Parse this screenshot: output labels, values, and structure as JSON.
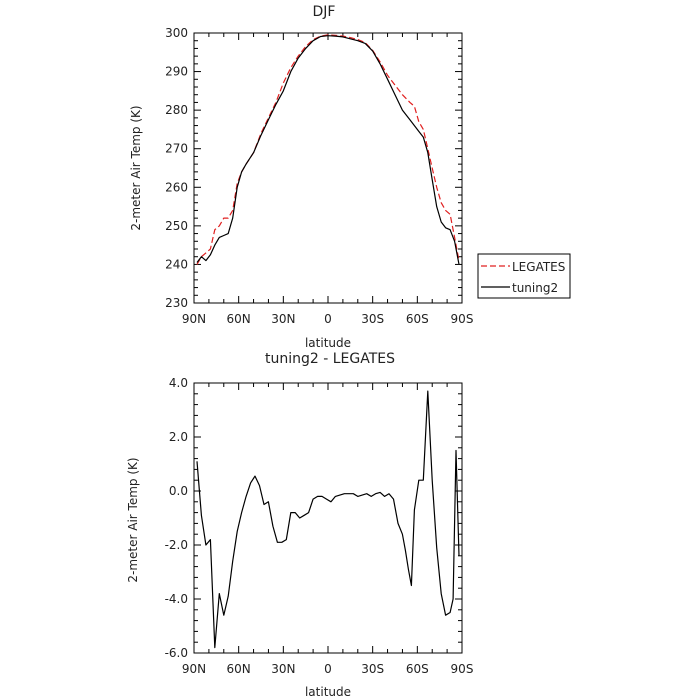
{
  "chart_data": [
    {
      "type": "line",
      "title": "DJF",
      "xlabel": "latitude",
      "ylabel": "2-meter Air Temp (K)",
      "xlim": [
        90,
        -90
      ],
      "ylim": [
        230,
        300
      ],
      "xticks": [
        {
          "value": 90,
          "label": "90N"
        },
        {
          "value": 60,
          "label": "60N"
        },
        {
          "value": 30,
          "label": "30N"
        },
        {
          "value": 0,
          "label": "0"
        },
        {
          "value": -30,
          "label": "30S"
        },
        {
          "value": -60,
          "label": "60S"
        },
        {
          "value": -90,
          "label": "90S"
        }
      ],
      "yticks": [
        {
          "value": 230,
          "label": "230"
        },
        {
          "value": 240,
          "label": "240"
        },
        {
          "value": 250,
          "label": "250"
        },
        {
          "value": 260,
          "label": "260"
        },
        {
          "value": 270,
          "label": "270"
        },
        {
          "value": 280,
          "label": "280"
        },
        {
          "value": 290,
          "label": "290"
        },
        {
          "value": 300,
          "label": "300"
        }
      ],
      "legend_position": "right",
      "series": [
        {
          "name": "LEGATES",
          "color": "#e02020",
          "dash": "dashed",
          "points": [
            [
              88,
              240
            ],
            [
              85,
              242
            ],
            [
              82,
              243
            ],
            [
              79,
              244
            ],
            [
              76,
              249
            ],
            [
              73,
              250
            ],
            [
              70,
              252
            ],
            [
              67,
              252
            ],
            [
              64,
              254
            ],
            [
              61,
              261
            ],
            [
              58,
              264
            ],
            [
              55,
              266
            ],
            [
              50,
              269
            ],
            [
              45,
              274
            ],
            [
              40,
              278
            ],
            [
              35,
              282
            ],
            [
              30,
              287
            ],
            [
              25,
              291
            ],
            [
              20,
              294
            ],
            [
              15,
              296.5
            ],
            [
              10,
              298.3
            ],
            [
              5,
              299.2
            ],
            [
              0,
              299.5
            ],
            [
              -5,
              299.4
            ],
            [
              -10,
              299.2
            ],
            [
              -15,
              298.8
            ],
            [
              -20,
              298.3
            ],
            [
              -25,
              297.5
            ],
            [
              -30,
              295.5
            ],
            [
              -35,
              292.5
            ],
            [
              -40,
              289
            ],
            [
              -45,
              286.5
            ],
            [
              -50,
              284
            ],
            [
              -55,
              282
            ],
            [
              -58,
              281
            ],
            [
              -61,
              277
            ],
            [
              -64,
              275
            ],
            [
              -67,
              270
            ],
            [
              -70,
              265
            ],
            [
              -73,
              260
            ],
            [
              -76,
              256
            ],
            [
              -79,
              254
            ],
            [
              -82,
              253
            ],
            [
              -85,
              247
            ],
            [
              -88,
              241
            ]
          ]
        },
        {
          "name": "tuning2",
          "color": "#000000",
          "dash": "solid",
          "points": [
            [
              88,
              240.5
            ],
            [
              85,
              242
            ],
            [
              82,
              241
            ],
            [
              79,
              242.5
            ],
            [
              76,
              245
            ],
            [
              73,
              247
            ],
            [
              70,
              247.5
            ],
            [
              67,
              248
            ],
            [
              64,
              252
            ],
            [
              61,
              260
            ],
            [
              58,
              264
            ],
            [
              55,
              266
            ],
            [
              50,
              269
            ],
            [
              45,
              273.5
            ],
            [
              40,
              277.5
            ],
            [
              35,
              281.5
            ],
            [
              30,
              285
            ],
            [
              25,
              290
            ],
            [
              20,
              293.5
            ],
            [
              15,
              296
            ],
            [
              10,
              298
            ],
            [
              5,
              299.1
            ],
            [
              0,
              299.3
            ],
            [
              -5,
              299.2
            ],
            [
              -10,
              299
            ],
            [
              -15,
              298.5
            ],
            [
              -20,
              298
            ],
            [
              -25,
              297.3
            ],
            [
              -30,
              295.3
            ],
            [
              -35,
              292
            ],
            [
              -40,
              288
            ],
            [
              -45,
              284
            ],
            [
              -50,
              280
            ],
            [
              -55,
              277.5
            ],
            [
              -58,
              276
            ],
            [
              -61,
              274.5
            ],
            [
              -64,
              273
            ],
            [
              -67,
              269
            ],
            [
              -70,
              262
            ],
            [
              -73,
              255
            ],
            [
              -76,
              251
            ],
            [
              -79,
              249.5
            ],
            [
              -82,
              249
            ],
            [
              -85,
              246
            ],
            [
              -88,
              240
            ]
          ]
        }
      ]
    },
    {
      "type": "line",
      "title": "tuning2 - LEGATES",
      "xlabel": "latitude",
      "ylabel": "2-meter Air Temp (K)",
      "xlim": [
        90,
        -90
      ],
      "ylim": [
        -6,
        4
      ],
      "xticks": [
        {
          "value": 90,
          "label": "90N"
        },
        {
          "value": 60,
          "label": "60N"
        },
        {
          "value": 30,
          "label": "30N"
        },
        {
          "value": 0,
          "label": "0"
        },
        {
          "value": -30,
          "label": "30S"
        },
        {
          "value": -60,
          "label": "60S"
        },
        {
          "value": -90,
          "label": "90S"
        }
      ],
      "yticks": [
        {
          "value": 4,
          "label": "4.0"
        },
        {
          "value": 2,
          "label": "2.0"
        },
        {
          "value": 0,
          "label": "0.0"
        },
        {
          "value": -2,
          "label": "-2.0"
        },
        {
          "value": -4,
          "label": "-4.0"
        },
        {
          "value": -6,
          "label": "-6.0"
        }
      ],
      "series": [
        {
          "color": "#000000",
          "dash": "solid",
          "points": [
            [
              88,
              1.1
            ],
            [
              85,
              -0.9
            ],
            [
              82,
              -2.0
            ],
            [
              79,
              -1.8
            ],
            [
              76,
              -5.8
            ],
            [
              73,
              -3.8
            ],
            [
              70,
              -4.6
            ],
            [
              67,
              -3.9
            ],
            [
              64,
              -2.6
            ],
            [
              61,
              -1.5
            ],
            [
              58,
              -0.8
            ],
            [
              55,
              -0.2
            ],
            [
              52,
              0.3
            ],
            [
              49,
              0.55
            ],
            [
              46,
              0.2
            ],
            [
              43,
              -0.5
            ],
            [
              40,
              -0.4
            ],
            [
              37,
              -1.3
            ],
            [
              34,
              -1.9
            ],
            [
              31,
              -1.9
            ],
            [
              28,
              -1.8
            ],
            [
              25,
              -0.8
            ],
            [
              22,
              -0.8
            ],
            [
              19,
              -1.0
            ],
            [
              16,
              -0.9
            ],
            [
              13,
              -0.8
            ],
            [
              10,
              -0.3
            ],
            [
              7,
              -0.2
            ],
            [
              4,
              -0.2
            ],
            [
              1,
              -0.3
            ],
            [
              -2,
              -0.4
            ],
            [
              -5,
              -0.2
            ],
            [
              -8,
              -0.15
            ],
            [
              -11,
              -0.1
            ],
            [
              -14,
              -0.1
            ],
            [
              -17,
              -0.1
            ],
            [
              -20,
              -0.2
            ],
            [
              -23,
              -0.15
            ],
            [
              -26,
              -0.1
            ],
            [
              -29,
              -0.2
            ],
            [
              -32,
              -0.1
            ],
            [
              -35,
              -0.05
            ],
            [
              -38,
              -0.2
            ],
            [
              -41,
              -0.1
            ],
            [
              -44,
              -0.3
            ],
            [
              -47,
              -1.2
            ],
            [
              -50,
              -1.6
            ],
            [
              -52,
              -2.2
            ],
            [
              -54,
              -2.9
            ],
            [
              -56,
              -3.5
            ],
            [
              -58,
              -0.7
            ],
            [
              -61,
              0.4
            ],
            [
              -64,
              0.4
            ],
            [
              -67,
              3.7
            ],
            [
              -70,
              0.4
            ],
            [
              -73,
              -2.1
            ],
            [
              -76,
              -3.8
            ],
            [
              -79,
              -4.6
            ],
            [
              -82,
              -4.5
            ],
            [
              -84,
              -4.0
            ],
            [
              -86,
              1.5
            ],
            [
              -88,
              -2.4
            ]
          ]
        }
      ]
    }
  ]
}
